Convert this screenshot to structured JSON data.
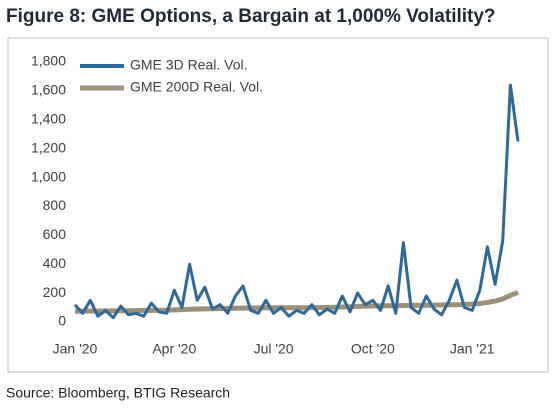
{
  "chart_data": {
    "type": "line",
    "title": "Figure 8: GME Options, a Bargain at 1,000% Volatility?",
    "source": "Source: Bloomberg, BTIG Research",
    "categories": [
      "Jan '20",
      null,
      null,
      null,
      null,
      null,
      null,
      null,
      null,
      null,
      null,
      null,
      null,
      "Apr '20",
      null,
      null,
      null,
      null,
      null,
      null,
      null,
      null,
      null,
      null,
      null,
      null,
      "Jul '20",
      null,
      null,
      null,
      null,
      null,
      null,
      null,
      null,
      null,
      null,
      null,
      null,
      "Oct '20",
      null,
      null,
      null,
      null,
      null,
      null,
      null,
      null,
      null,
      null,
      null,
      null,
      "Jan '21",
      null,
      null,
      null,
      null,
      null,
      null
    ],
    "series": [
      {
        "name": "GME 3D Real. Vol.",
        "color": "#2e6a99",
        "values": [
          120,
          60,
          150,
          40,
          80,
          30,
          110,
          50,
          60,
          40,
          130,
          70,
          60,
          220,
          100,
          400,
          150,
          240,
          90,
          120,
          60,
          180,
          250,
          80,
          60,
          150,
          60,
          100,
          40,
          80,
          60,
          120,
          50,
          90,
          60,
          180,
          70,
          200,
          120,
          150,
          80,
          250,
          60,
          550,
          100,
          60,
          180,
          90,
          50,
          150,
          290,
          100,
          80,
          220,
          520,
          260,
          560,
          1640,
          1250
        ]
      },
      {
        "name": "GME 200D Real. Vol.",
        "color": "#9c9178",
        "values": [
          75,
          75,
          76,
          76,
          77,
          77,
          78,
          78,
          79,
          80,
          80,
          81,
          82,
          84,
          86,
          88,
          90,
          91,
          92,
          93,
          94,
          95,
          96,
          97,
          97,
          98,
          98,
          98,
          99,
          99,
          99,
          100,
          100,
          101,
          102,
          104,
          106,
          108,
          110,
          111,
          112,
          112,
          113,
          114,
          115,
          115,
          116,
          117,
          118,
          119,
          120,
          122,
          124,
          128,
          135,
          145,
          160,
          185,
          205
        ]
      }
    ],
    "ylim": [
      0,
      1800
    ],
    "yticks": [
      0,
      200,
      400,
      600,
      800,
      {
        "value": 1000,
        "label": "1,000"
      },
      {
        "value": 1200,
        "label": "1,200"
      },
      {
        "value": 1400,
        "label": "1,400"
      },
      {
        "value": 1600,
        "label": "1,600"
      },
      {
        "value": 1800,
        "label": "1,800"
      }
    ],
    "legend": "top-left"
  }
}
